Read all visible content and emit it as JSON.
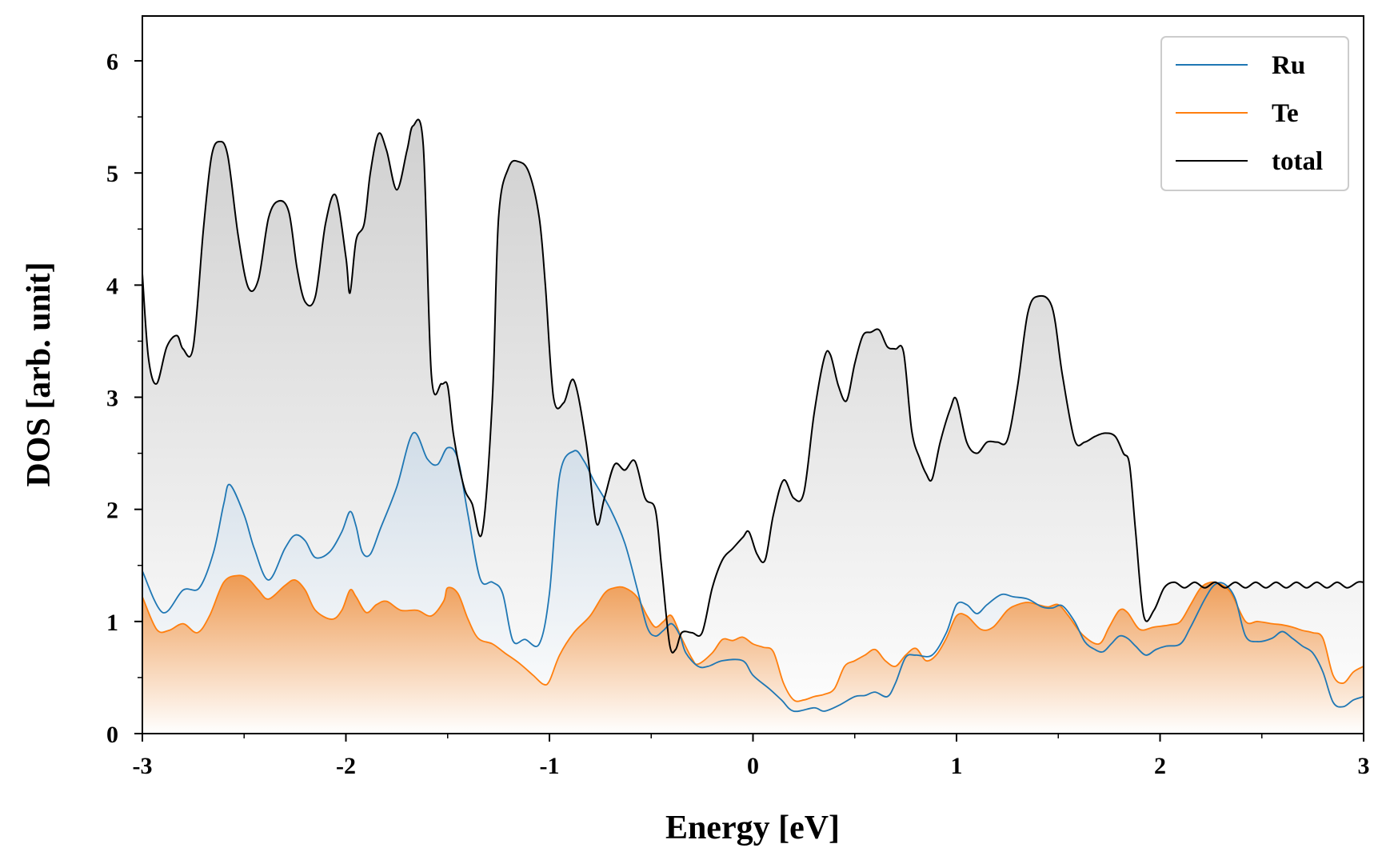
{
  "chart_data": {
    "type": "area",
    "xlabel": "Energy [eV]",
    "ylabel": "DOS [arb. unit]",
    "xlim": [
      -3,
      3
    ],
    "ylim": [
      0,
      6.4
    ],
    "xticks": [
      -3,
      -2,
      -1,
      0,
      1,
      2,
      3
    ],
    "yticks": [
      0,
      1,
      2,
      3,
      4,
      5,
      6
    ],
    "legend_position": "top-right",
    "grid": false,
    "colors": {
      "Ru": "#1f77b4",
      "Te": "#ff7f0e",
      "total": "#000000"
    },
    "series": [
      {
        "name": "Ru",
        "x": [
          -3.0,
          -2.9,
          -2.8,
          -2.72,
          -2.65,
          -2.6,
          -2.57,
          -2.5,
          -2.45,
          -2.38,
          -2.3,
          -2.25,
          -2.2,
          -2.15,
          -2.08,
          -2.02,
          -1.98,
          -1.95,
          -1.92,
          -1.88,
          -1.83,
          -1.75,
          -1.67,
          -1.6,
          -1.55,
          -1.5,
          -1.45,
          -1.4,
          -1.34,
          -1.28,
          -1.23,
          -1.18,
          -1.12,
          -1.05,
          -1.0,
          -0.95,
          -0.88,
          -0.83,
          -0.78,
          -0.7,
          -0.63,
          -0.57,
          -0.52,
          -0.48,
          -0.44,
          -0.4,
          -0.36,
          -0.33,
          -0.27,
          -0.22,
          -0.15,
          -0.05,
          0.0,
          0.08,
          0.14,
          0.2,
          0.3,
          0.35,
          0.42,
          0.5,
          0.55,
          0.6,
          0.66,
          0.7,
          0.75,
          0.8,
          0.88,
          0.95,
          1.0,
          1.05,
          1.1,
          1.15,
          1.22,
          1.28,
          1.35,
          1.42,
          1.47,
          1.52,
          1.58,
          1.63,
          1.68,
          1.72,
          1.76,
          1.8,
          1.84,
          1.88,
          1.93,
          1.98,
          2.03,
          2.1,
          2.15,
          2.22,
          2.27,
          2.32,
          2.37,
          2.42,
          2.48,
          2.55,
          2.6,
          2.65,
          2.7,
          2.75,
          2.8,
          2.85,
          2.9,
          2.95,
          3.0
        ],
        "y": [
          1.45,
          1.08,
          1.28,
          1.3,
          1.62,
          2.05,
          2.22,
          1.95,
          1.65,
          1.37,
          1.65,
          1.77,
          1.72,
          1.57,
          1.62,
          1.8,
          1.98,
          1.85,
          1.62,
          1.6,
          1.83,
          2.2,
          2.68,
          2.45,
          2.4,
          2.55,
          2.45,
          1.95,
          1.38,
          1.35,
          1.25,
          0.83,
          0.84,
          0.8,
          1.25,
          2.3,
          2.52,
          2.43,
          2.25,
          2.0,
          1.7,
          1.3,
          0.95,
          0.87,
          0.92,
          0.98,
          0.88,
          0.72,
          0.6,
          0.6,
          0.65,
          0.65,
          0.52,
          0.4,
          0.3,
          0.2,
          0.23,
          0.2,
          0.25,
          0.33,
          0.34,
          0.37,
          0.33,
          0.45,
          0.68,
          0.7,
          0.7,
          0.9,
          1.15,
          1.15,
          1.07,
          1.15,
          1.24,
          1.22,
          1.2,
          1.13,
          1.12,
          1.14,
          1.0,
          0.82,
          0.75,
          0.73,
          0.8,
          0.87,
          0.85,
          0.78,
          0.7,
          0.75,
          0.78,
          0.8,
          0.95,
          1.2,
          1.33,
          1.33,
          1.2,
          0.87,
          0.82,
          0.85,
          0.91,
          0.85,
          0.78,
          0.72,
          0.55,
          0.28,
          0.24,
          0.3,
          0.33
        ]
      },
      {
        "name": "Te",
        "x": [
          -3.0,
          -2.93,
          -2.87,
          -2.8,
          -2.73,
          -2.67,
          -2.6,
          -2.53,
          -2.48,
          -2.43,
          -2.38,
          -2.3,
          -2.25,
          -2.2,
          -2.15,
          -2.07,
          -2.02,
          -1.98,
          -1.95,
          -1.9,
          -1.85,
          -1.8,
          -1.73,
          -1.65,
          -1.58,
          -1.52,
          -1.5,
          -1.45,
          -1.4,
          -1.35,
          -1.28,
          -1.22,
          -1.15,
          -1.08,
          -1.03,
          -1.0,
          -0.95,
          -0.88,
          -0.8,
          -0.73,
          -0.68,
          -0.63,
          -0.57,
          -0.52,
          -0.48,
          -0.44,
          -0.4,
          -0.35,
          -0.3,
          -0.27,
          -0.2,
          -0.15,
          -0.1,
          -0.05,
          0.0,
          0.05,
          0.1,
          0.15,
          0.2,
          0.25,
          0.3,
          0.35,
          0.4,
          0.45,
          0.5,
          0.55,
          0.6,
          0.65,
          0.7,
          0.75,
          0.8,
          0.85,
          0.9,
          0.95,
          1.0,
          1.05,
          1.12,
          1.18,
          1.25,
          1.3,
          1.35,
          1.4,
          1.45,
          1.5,
          1.55,
          1.62,
          1.7,
          1.75,
          1.8,
          1.84,
          1.9,
          1.97,
          2.05,
          2.1,
          2.15,
          2.2,
          2.25,
          2.3,
          2.35,
          2.42,
          2.48,
          2.55,
          2.6,
          2.65,
          2.7,
          2.75,
          2.8,
          2.85,
          2.9,
          2.95,
          3.0
        ],
        "y": [
          1.22,
          0.93,
          0.92,
          0.98,
          0.9,
          1.05,
          1.35,
          1.41,
          1.38,
          1.28,
          1.2,
          1.32,
          1.37,
          1.28,
          1.1,
          1.02,
          1.1,
          1.28,
          1.22,
          1.08,
          1.15,
          1.18,
          1.1,
          1.1,
          1.05,
          1.18,
          1.3,
          1.25,
          1.02,
          0.85,
          0.8,
          0.72,
          0.63,
          0.52,
          0.44,
          0.47,
          0.7,
          0.9,
          1.05,
          1.25,
          1.3,
          1.3,
          1.22,
          1.05,
          0.95,
          1.0,
          1.05,
          0.85,
          0.67,
          0.62,
          0.72,
          0.84,
          0.83,
          0.86,
          0.8,
          0.77,
          0.73,
          0.45,
          0.3,
          0.3,
          0.33,
          0.35,
          0.4,
          0.6,
          0.65,
          0.7,
          0.75,
          0.65,
          0.6,
          0.7,
          0.76,
          0.65,
          0.7,
          0.85,
          1.05,
          1.05,
          0.93,
          0.95,
          1.1,
          1.15,
          1.17,
          1.15,
          1.13,
          1.15,
          1.05,
          0.88,
          0.8,
          0.95,
          1.1,
          1.08,
          0.93,
          0.95,
          0.97,
          1.0,
          1.15,
          1.3,
          1.35,
          1.33,
          1.25,
          1.0,
          1.0,
          0.98,
          0.97,
          0.95,
          0.92,
          0.9,
          0.85,
          0.52,
          0.45,
          0.55,
          0.6
        ]
      },
      {
        "name": "total",
        "x": [
          -3.0,
          -2.97,
          -2.93,
          -2.88,
          -2.83,
          -2.8,
          -2.75,
          -2.7,
          -2.66,
          -2.62,
          -2.58,
          -2.53,
          -2.48,
          -2.43,
          -2.38,
          -2.33,
          -2.28,
          -2.24,
          -2.2,
          -2.15,
          -2.1,
          -2.05,
          -2.0,
          -1.98,
          -1.95,
          -1.91,
          -1.88,
          -1.84,
          -1.8,
          -1.75,
          -1.7,
          -1.67,
          -1.62,
          -1.58,
          -1.53,
          -1.5,
          -1.47,
          -1.42,
          -1.38,
          -1.33,
          -1.28,
          -1.25,
          -1.2,
          -1.15,
          -1.1,
          -1.05,
          -1.02,
          -0.98,
          -0.93,
          -0.88,
          -0.82,
          -0.77,
          -0.73,
          -0.68,
          -0.63,
          -0.58,
          -0.53,
          -0.48,
          -0.45,
          -0.41,
          -0.38,
          -0.35,
          -0.3,
          -0.25,
          -0.2,
          -0.15,
          -0.1,
          -0.05,
          -0.02,
          0.02,
          0.06,
          0.1,
          0.15,
          0.2,
          0.25,
          0.3,
          0.35,
          0.38,
          0.42,
          0.46,
          0.5,
          0.54,
          0.58,
          0.62,
          0.66,
          0.7,
          0.74,
          0.78,
          0.82,
          0.85,
          0.88,
          0.92,
          0.97,
          1.0,
          1.05,
          1.1,
          1.15,
          1.2,
          1.25,
          1.3,
          1.35,
          1.4,
          1.47,
          1.52,
          1.58,
          1.63,
          1.68,
          1.73,
          1.78,
          1.82,
          1.85,
          1.88,
          1.92,
          1.97,
          2.02,
          2.07,
          2.12,
          2.17,
          2.22,
          2.27,
          2.32,
          2.37,
          2.42,
          2.47,
          2.52,
          2.57,
          2.62,
          2.67,
          2.72,
          2.77,
          2.82,
          2.87,
          2.92,
          2.97,
          3.0
        ],
        "y": [
          4.1,
          3.35,
          3.12,
          3.45,
          3.55,
          3.43,
          3.45,
          4.5,
          5.15,
          5.28,
          5.15,
          4.45,
          3.98,
          4.05,
          4.6,
          4.75,
          4.65,
          4.15,
          3.85,
          3.9,
          4.55,
          4.8,
          4.25,
          3.93,
          4.4,
          4.55,
          5.0,
          5.35,
          5.2,
          4.85,
          5.2,
          5.42,
          5.25,
          3.2,
          3.12,
          3.1,
          2.65,
          2.2,
          2.05,
          1.8,
          3.0,
          4.6,
          5.05,
          5.1,
          5.0,
          4.6,
          4.0,
          3.0,
          2.95,
          3.15,
          2.6,
          1.88,
          2.1,
          2.4,
          2.35,
          2.43,
          2.1,
          2.0,
          1.5,
          0.8,
          0.75,
          0.9,
          0.9,
          0.9,
          1.3,
          1.55,
          1.65,
          1.75,
          1.8,
          1.6,
          1.55,
          1.95,
          2.26,
          2.1,
          2.15,
          2.85,
          3.35,
          3.38,
          3.1,
          2.97,
          3.3,
          3.55,
          3.58,
          3.6,
          3.45,
          3.43,
          3.4,
          2.7,
          2.45,
          2.32,
          2.27,
          2.6,
          2.9,
          2.98,
          2.6,
          2.5,
          2.6,
          2.6,
          2.62,
          3.1,
          3.75,
          3.9,
          3.8,
          3.2,
          2.62,
          2.6,
          2.65,
          2.68,
          2.65,
          2.5,
          2.4,
          1.8,
          1.05,
          1.1,
          1.3,
          1.35,
          1.3,
          1.35,
          1.3,
          1.35,
          1.3,
          1.35,
          1.3,
          1.35,
          1.3,
          1.35,
          1.3,
          1.35,
          1.3,
          1.35,
          1.3,
          1.35,
          1.3,
          1.35,
          1.35
        ]
      }
    ]
  }
}
